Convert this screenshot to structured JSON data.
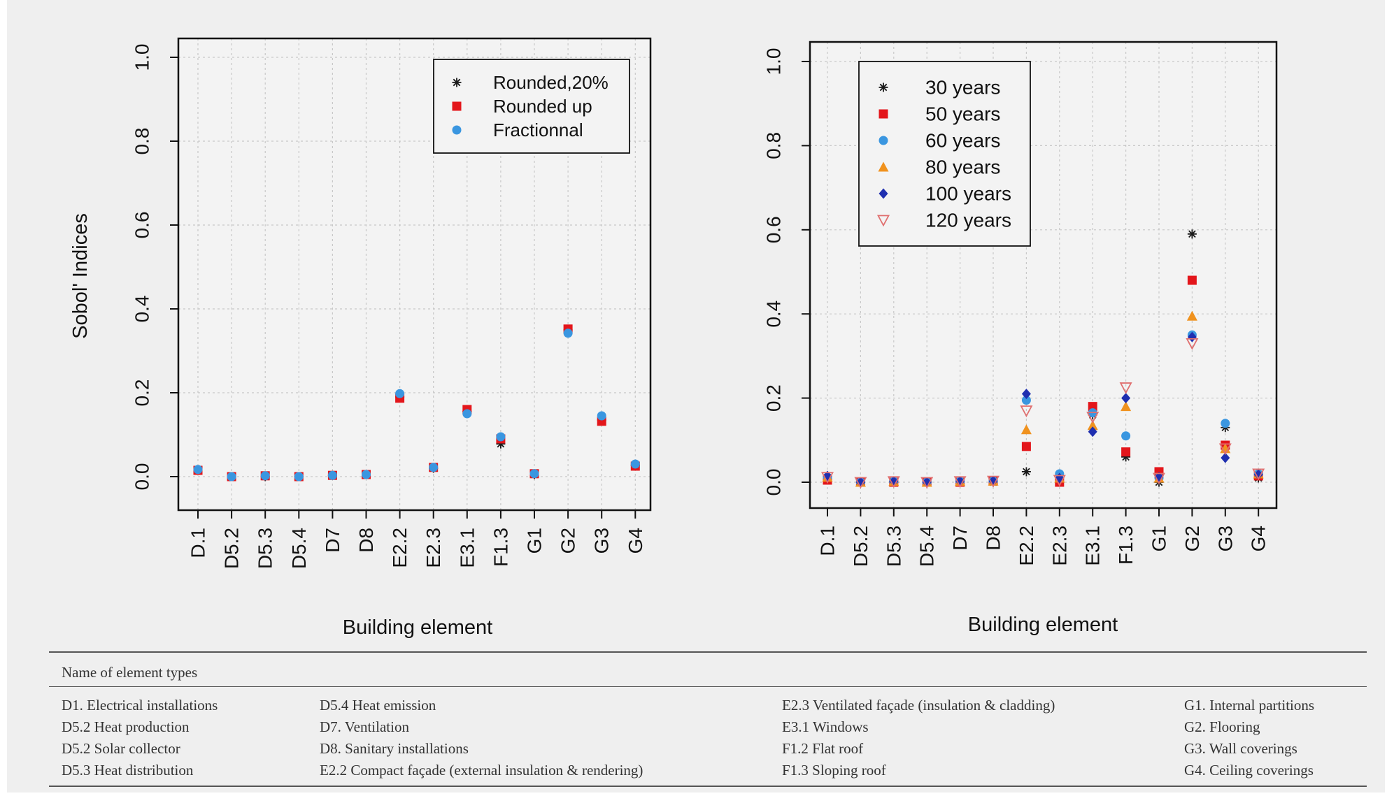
{
  "chart_data": [
    {
      "type": "scatter",
      "title": "",
      "xlabel": "Building element",
      "ylabel": "Sobol' Indices",
      "ylim": [
        0,
        1
      ],
      "yticks": [
        "0.0",
        "0.2",
        "0.4",
        "0.6",
        "0.8",
        "1.0"
      ],
      "grid": true,
      "legend_position": "top-right",
      "categories": [
        "D.1",
        "D5.2",
        "D5.3",
        "D5.4",
        "D7",
        "D8",
        "E2.2",
        "E2.3",
        "E3.1",
        "F1.3",
        "G1",
        "G2",
        "G3",
        "G4"
      ],
      "series": [
        {
          "name": "Rounded,20%",
          "marker": "asterisk",
          "color": "#1a1a1a",
          "values": [
            0.015,
            0.0,
            0.0,
            0.0,
            0.003,
            0.005,
            0.19,
            0.02,
            0.155,
            0.078,
            0.005,
            0.35,
            0.135,
            0.027
          ]
        },
        {
          "name": "Rounded up",
          "marker": "square",
          "color": "#e3161b",
          "values": [
            0.015,
            0.0,
            0.002,
            0.0,
            0.003,
            0.005,
            0.187,
            0.022,
            0.16,
            0.09,
            0.007,
            0.352,
            0.132,
            0.025
          ]
        },
        {
          "name": "Fractionnal",
          "marker": "circle",
          "color": "#3a96e0",
          "values": [
            0.017,
            0.0,
            0.002,
            0.0,
            0.003,
            0.005,
            0.198,
            0.022,
            0.15,
            0.095,
            0.007,
            0.342,
            0.145,
            0.03
          ]
        }
      ]
    },
    {
      "type": "scatter",
      "title": "",
      "xlabel": "Building element",
      "ylabel": "",
      "ylim": [
        0,
        1
      ],
      "yticks": [
        "0.0",
        "0.2",
        "0.4",
        "0.6",
        "0.8",
        "1.0"
      ],
      "grid": true,
      "legend_position": "top-left",
      "categories": [
        "D.1",
        "D5.2",
        "D5.3",
        "D5.4",
        "D7",
        "D8",
        "E2.2",
        "E2.3",
        "E3.1",
        "F1.3",
        "G1",
        "G2",
        "G3",
        "G4"
      ],
      "series": [
        {
          "name": "30 years",
          "marker": "asterisk",
          "color": "#1a1a1a",
          "values": [
            0.01,
            0.0,
            0.0,
            0.0,
            0.0,
            0.0,
            0.025,
            0.0,
            0.16,
            0.06,
            0.0,
            0.59,
            0.13,
            0.01
          ]
        },
        {
          "name": "50 years",
          "marker": "square",
          "color": "#e3161b",
          "values": [
            0.005,
            0.0,
            0.0,
            0.0,
            0.0,
            0.003,
            0.085,
            0.0,
            0.18,
            0.072,
            0.025,
            0.48,
            0.088,
            0.015
          ]
        },
        {
          "name": "60 years",
          "marker": "circle",
          "color": "#3a96e0",
          "values": [
            0.012,
            0.0,
            0.002,
            0.0,
            0.002,
            0.003,
            0.195,
            0.02,
            0.165,
            0.11,
            0.01,
            0.35,
            0.14,
            0.02
          ]
        },
        {
          "name": "80 years",
          "marker": "triangle-up",
          "color": "#f0921e",
          "values": [
            0.012,
            0.0,
            0.002,
            0.0,
            0.002,
            0.003,
            0.125,
            0.01,
            0.135,
            0.18,
            0.01,
            0.395,
            0.08,
            0.02
          ]
        },
        {
          "name": "100 years",
          "marker": "diamond",
          "color": "#1f2fb0",
          "values": [
            0.015,
            0.0,
            0.002,
            0.0,
            0.002,
            0.003,
            0.21,
            0.01,
            0.12,
            0.2,
            0.012,
            0.345,
            0.058,
            0.018
          ]
        },
        {
          "name": "120 years",
          "marker": "triangle-down",
          "color": "#e07070",
          "values": [
            0.012,
            0.0,
            0.002,
            0.0,
            0.002,
            0.003,
            0.17,
            0.005,
            0.155,
            0.225,
            0.01,
            0.33,
            0.08,
            0.02
          ]
        }
      ]
    }
  ],
  "element_table": {
    "title": "Name of element types",
    "columns": [
      [
        "D1. Electrical installations",
        "D5.2 Heat production",
        "D5.2 Solar collector",
        "D5.3 Heat distribution"
      ],
      [
        "D5.4 Heat emission",
        "D7. Ventilation",
        "D8. Sanitary installations",
        "E2.2 Compact façade (external insulation & rendering)"
      ],
      [
        "E2.3 Ventilated façade (insulation & cladding)",
        "E3.1 Windows",
        "F1.2 Flat roof",
        "F1.3 Sloping roof"
      ],
      [
        "G1. Internal partitions",
        "G2. Flooring",
        "G3. Wall coverings",
        "G4. Ceiling coverings"
      ]
    ]
  }
}
